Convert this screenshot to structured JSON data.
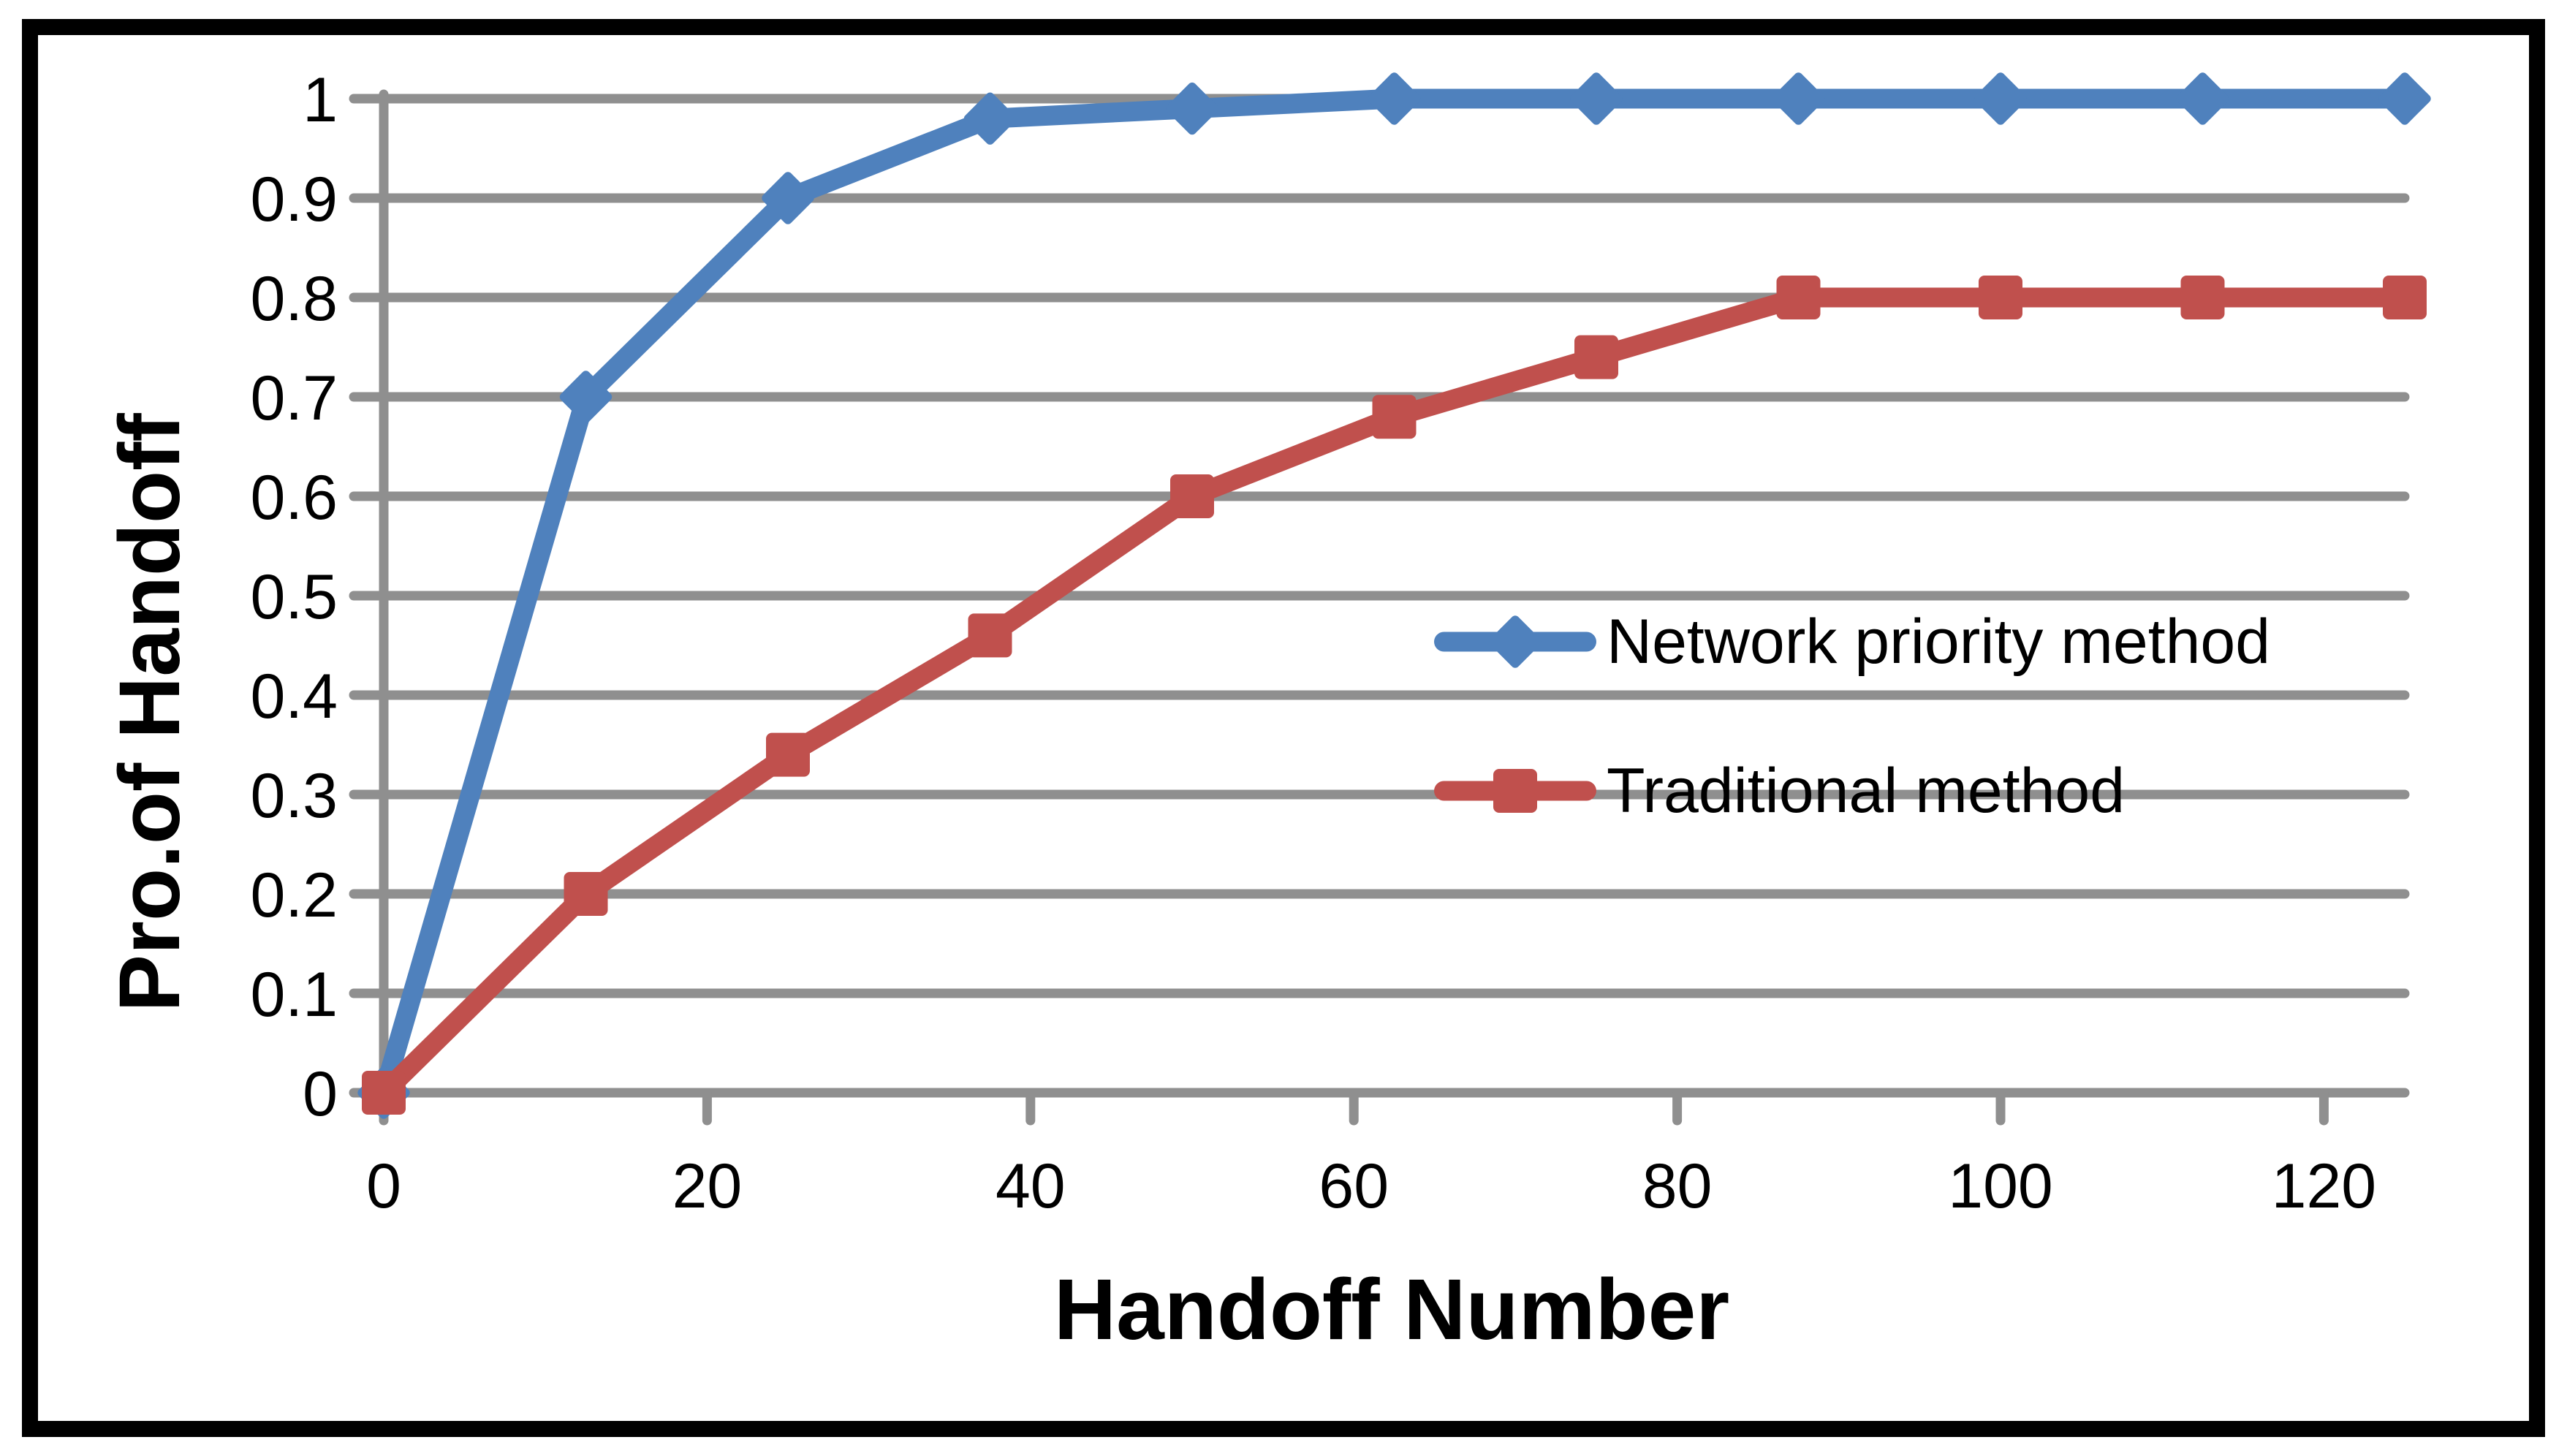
{
  "chart_data": {
    "type": "line",
    "title": "",
    "xlabel": "Handoff Number",
    "ylabel": "Pro.of Handoff",
    "x": [
      0,
      12.5,
      25,
      37.5,
      50,
      62.5,
      75,
      87.5,
      100,
      112.5,
      125
    ],
    "series": [
      {
        "name": "Network priority method",
        "color": "#4f81bd",
        "marker": "diamond",
        "values": [
          0,
          0.7,
          0.9,
          0.98,
          0.99,
          1,
          1,
          1,
          1,
          1,
          1
        ]
      },
      {
        "name": "Traditional method",
        "color": "#c0504d",
        "marker": "square",
        "values": [
          0,
          0.2,
          0.34,
          0.46,
          0.6,
          0.68,
          0.74,
          0.8,
          0.8,
          0.8,
          0.8
        ]
      }
    ],
    "x_ticks": [
      0,
      20,
      40,
      60,
      80,
      100,
      120
    ],
    "x_tick_labels": [
      "0",
      "20",
      "40",
      "60",
      "80",
      "100",
      "120"
    ],
    "y_ticks": [
      0,
      0.1,
      0.2,
      0.3,
      0.4,
      0.5,
      0.6,
      0.7,
      0.8,
      0.9,
      1
    ],
    "y_tick_labels": [
      "0",
      "0.1",
      "0.2",
      "0.3",
      "0.4",
      "0.5",
      "0.6",
      "0.7",
      "0.8",
      "0.9",
      "1"
    ],
    "xlim": [
      0,
      125
    ],
    "ylim": [
      0,
      1
    ],
    "grid": "horizontal",
    "legend_position": "inside-right-middle",
    "colors": {
      "grid": "#8f8f8f",
      "frame": "#000000",
      "background": "#ffffff",
      "text": "#000000"
    }
  }
}
